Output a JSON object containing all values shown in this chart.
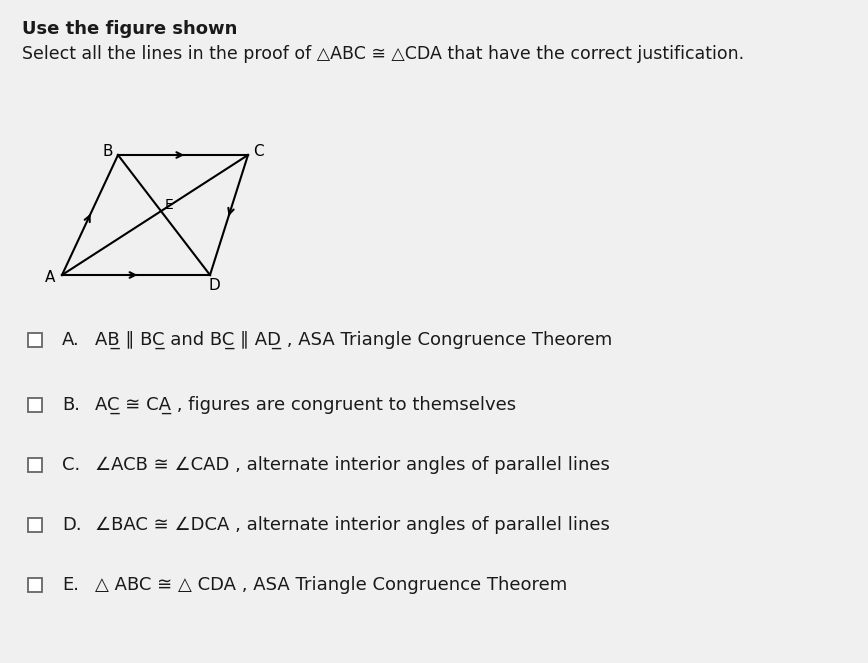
{
  "bg_color": "#f0f0f0",
  "title_line1": "Use the figure shown",
  "title_line2": "Select all the lines in the proof of △ABC ≅ △CDA that have the correct justification.",
  "options": [
    {
      "letter": "A.",
      "line1": "AB̲ ∥ BC̲ and BC̲ ∥ AD̲",
      "line2": " , ASA Triangle Congruence Theorem"
    },
    {
      "letter": "B.",
      "line1": "AC̲ ≅ CA̲",
      "line2": " , figures are congruent to themselves"
    },
    {
      "letter": "C.",
      "line1": "∠ACB ≅ ∠CAD",
      "line2": " , alternate interior angles of parallel lines"
    },
    {
      "letter": "D.",
      "line1": "∠BAC ≅ ∠DCA",
      "line2": " , alternate interior angles of parallel lines"
    },
    {
      "letter": "E.",
      "line1": "△ ABC ≅ △ CDA",
      "line2": " , ASA Triangle Congruence Theorem"
    }
  ],
  "checkbox_color": "#666666",
  "text_color": "#1a1a1a",
  "font_size_title1": 13,
  "font_size_title2": 12.5,
  "font_size_options": 13
}
